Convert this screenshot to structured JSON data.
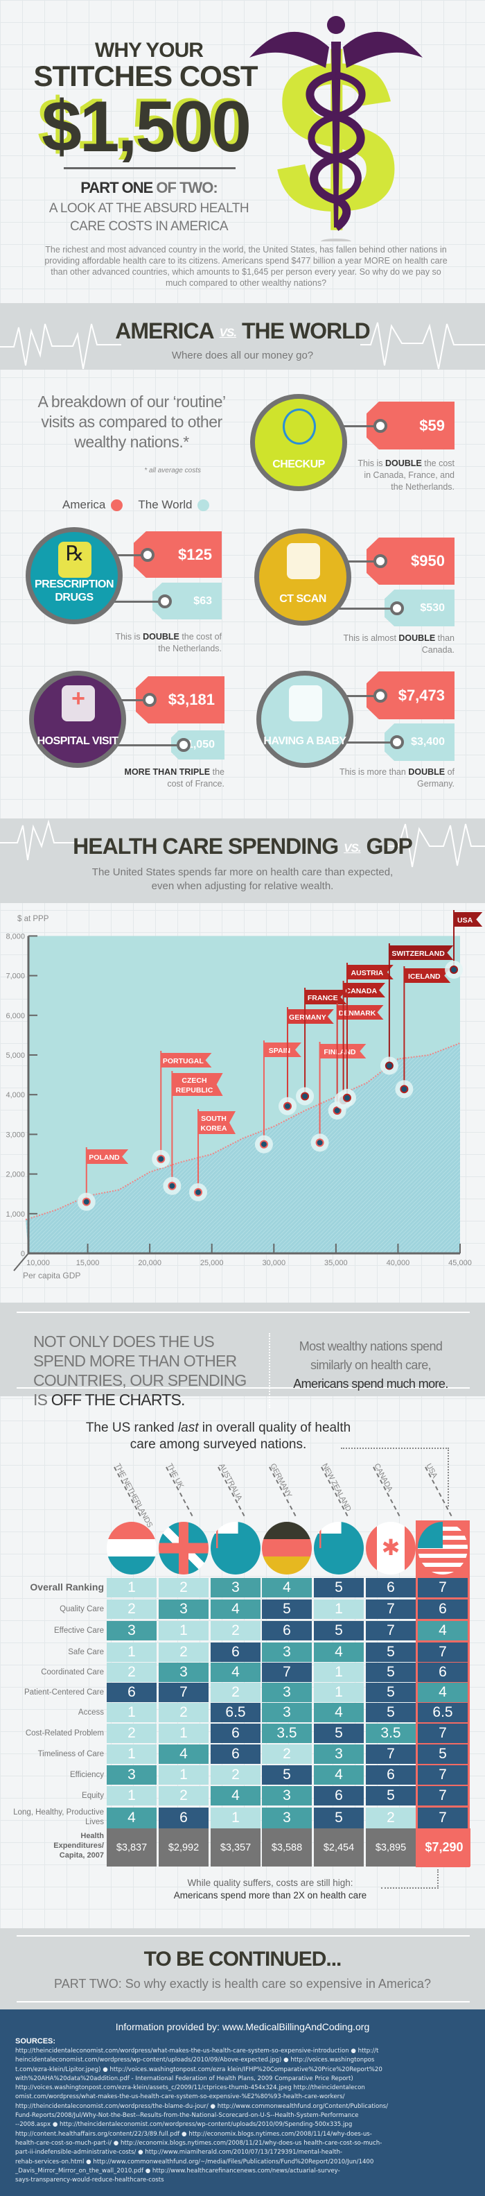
{
  "header": {
    "title_line1": "WHY YOUR",
    "title_line2": "STITCHES COST",
    "title_amount": "$1,500",
    "part_bold": "PART ONE",
    "part_rest": " OF TWO:",
    "subtitle": "A LOOK AT THE ABSURD HEALTH CARE COSTS IN AMERICA",
    "intro": "The richest and most advanced country in the world, the United States, has fallen behind other nations in providing affordable health care to its citizens. Americans spend $477 billion a year MORE on health care than other advanced countries, which amounts to $1,645 per person every year. So why do we pay so much compared to other wealthy nations?",
    "logo_icon": "caduceus-dollar-icon",
    "colors": {
      "purple": "#4e1b57",
      "lime": "#d3e63a"
    }
  },
  "section1": {
    "title_a": "AMERICA",
    "vs": "VS.",
    "title_b": "THE WORLD",
    "subtitle": "Where does all our money go?",
    "breakdown": "A breakdown of our ‘routine’ visits as compared to other wealthy nations.*",
    "footnote": "* all average costs",
    "legend": [
      {
        "label": "America",
        "color": "#f36b64"
      },
      {
        "label": "The World",
        "color": "#b7e2e2"
      }
    ],
    "visits": [
      {
        "label": "CHECKUP",
        "icon": "stethoscope-icon",
        "color": "#cfe32c",
        "america": "$59",
        "world": null,
        "caption_pre": "This is ",
        "caption_bold": "DOUBLE",
        "caption_post": " the cost in Canada, France, and the Netherlands."
      },
      {
        "label": "PRESCRIPTION DRUGS",
        "icon": "pill-bottle-icon",
        "color": "#139eae",
        "america": "$125",
        "world": "$63",
        "caption_pre": "This is ",
        "caption_bold": "DOUBLE",
        "caption_post": " the cost of the Netherlands."
      },
      {
        "label": "CT SCAN",
        "icon": "ct-scanner-icon",
        "color": "#e5b71f",
        "america": "$950",
        "world": "$530",
        "caption_pre": "This is almost ",
        "caption_bold": "DOUBLE",
        "caption_post": " than Canada."
      },
      {
        "label": "HOSPITAL VISIT",
        "icon": "nurse-cap-icon",
        "color": "#5c2a67",
        "america": "$3,181",
        "world": "$1,050",
        "caption_pre": "",
        "caption_bold": "MORE THAN TRIPLE",
        "caption_post": " the cost of France."
      },
      {
        "label": "HAVING A BABY",
        "icon": "stork-icon",
        "color": "#b7e2e2",
        "america": "$7,473",
        "world": "$3,400",
        "caption_pre": "This is more than ",
        "caption_bold": "DOUBLE",
        "caption_post": " of Germany."
      }
    ]
  },
  "section2": {
    "title_a": "HEALTH CARE SPENDING",
    "vs": "VS.",
    "title_b": "GDP",
    "subtitle": "The United States spends far more on health care than expected, even when adjusting for relative wealth."
  },
  "chart_data": {
    "type": "scatter",
    "ylabel": "$ at PPP",
    "xlabel": "Per capita GDP",
    "xlim": [
      10000,
      45000
    ],
    "ylim": [
      0,
      8000
    ],
    "xticks": [
      "10,000",
      "15,000",
      "20,000",
      "25,000",
      "30,000",
      "35,000",
      "40,000",
      "45,000"
    ],
    "xtick_values": [
      10000,
      15000,
      20000,
      25000,
      30000,
      35000,
      40000,
      45000
    ],
    "yticks": [
      "0",
      "1,000",
      "2,000",
      "3,000",
      "4,000",
      "5,000",
      "6,000",
      "7,000",
      "8,000"
    ],
    "ytick_values": [
      0,
      1000,
      2000,
      3000,
      4000,
      5000,
      6000,
      7000,
      8000
    ],
    "grid": false,
    "points": [
      {
        "label": "POLAND",
        "x": 14900,
        "y": 1300
      },
      {
        "label": "PORTUGAL",
        "x": 20900,
        "y": 2380
      },
      {
        "label": "CZECH REPUBLIC",
        "x": 21800,
        "y": 1700
      },
      {
        "label": "SOUTH KOREA",
        "x": 23900,
        "y": 1540
      },
      {
        "label": "SPAIN",
        "x": 29200,
        "y": 2750
      },
      {
        "label": "GERMANY",
        "x": 31100,
        "y": 3710
      },
      {
        "label": "FRANCE",
        "x": 32500,
        "y": 3960
      },
      {
        "label": "FINLAND",
        "x": 33700,
        "y": 2790
      },
      {
        "label": "DENMARK",
        "x": 35100,
        "y": 3600
      },
      {
        "label": "CANADA",
        "x": 35600,
        "y": 3860
      },
      {
        "label": "AUSTRIA",
        "x": 35900,
        "y": 3920
      },
      {
        "label": "SWITZERLAND",
        "x": 39300,
        "y": 4730
      },
      {
        "label": "ICELAND",
        "x": 40500,
        "y": 4140
      },
      {
        "label": "USA",
        "x": 44500,
        "y": 7150
      }
    ],
    "trend": [
      [
        10000,
        850
      ],
      [
        12500,
        1100
      ],
      [
        15000,
        1450
      ],
      [
        17500,
        1600
      ],
      [
        20000,
        2050
      ],
      [
        22500,
        2300
      ],
      [
        25000,
        2500
      ],
      [
        27500,
        2900
      ],
      [
        30000,
        3200
      ],
      [
        32500,
        3600
      ],
      [
        35000,
        3950
      ],
      [
        37500,
        4300
      ],
      [
        40000,
        4900
      ],
      [
        42500,
        5000
      ],
      [
        45000,
        5300
      ]
    ],
    "colors": {
      "area": "#b3e0e0",
      "below": "#9fd3dc",
      "point": "#1d4f6e",
      "trend": "#f08585"
    }
  },
  "callout": {
    "left_pre": "NOT ONLY DOES THE US SPEND MORE THAN OTHER COUNTRIES, OUR SPENDING IS ",
    "left_bold": "OFF THE CHARTS.",
    "right_pre": "Most wealthy nations spend similarly on health care,",
    "right_bold": "Americans spend much more."
  },
  "ranking": {
    "heading_pre": "The US ranked ",
    "heading_em": "last",
    "heading_post": " in overall quality of health care among surveyed nations.",
    "countries": [
      {
        "name": "THE NETHERLANDS",
        "flag": "netherlands-flag-icon"
      },
      {
        "name": "THE UK",
        "flag": "uk-flag-icon"
      },
      {
        "name": "AUSTRALIA",
        "flag": "australia-flag-icon"
      },
      {
        "name": "GERMANY",
        "flag": "germany-flag-icon"
      },
      {
        "name": "NEW ZEALAND",
        "flag": "new-zealand-flag-icon"
      },
      {
        "name": "CANADA",
        "flag": "canada-flag-icon"
      },
      {
        "name": "USA",
        "flag": "usa-flag-icon"
      }
    ],
    "rows": [
      {
        "label": "Overall Ranking",
        "values": [
          "1",
          "2",
          "3",
          "4",
          "5",
          "6",
          "7"
        ]
      },
      {
        "label": "Quality Care",
        "values": [
          "2",
          "3",
          "4",
          "5",
          "1",
          "7",
          "6"
        ]
      },
      {
        "label": "Effective Care",
        "values": [
          "3",
          "1",
          "2",
          "6",
          "5",
          "7",
          "4"
        ]
      },
      {
        "label": "Safe Care",
        "values": [
          "1",
          "2",
          "6",
          "3",
          "4",
          "5",
          "7"
        ]
      },
      {
        "label": "Coordinated Care",
        "values": [
          "2",
          "3",
          "4",
          "7",
          "1",
          "5",
          "6"
        ]
      },
      {
        "label": "Patient-Centered Care",
        "values": [
          "6",
          "7",
          "2",
          "3",
          "1",
          "5",
          "4"
        ]
      },
      {
        "label": "Access",
        "values": [
          "1",
          "2",
          "6.5",
          "3",
          "4",
          "5",
          "6.5"
        ]
      },
      {
        "label": "Cost-Related Problem",
        "values": [
          "2",
          "1",
          "6",
          "3.5",
          "5",
          "3.5",
          "7"
        ]
      },
      {
        "label": "Timeliness of Care",
        "values": [
          "1",
          "4",
          "6",
          "2",
          "3",
          "7",
          "5"
        ]
      },
      {
        "label": "Efficiency",
        "values": [
          "3",
          "1",
          "2",
          "5",
          "4",
          "6",
          "7"
        ]
      },
      {
        "label": "Equity",
        "values": [
          "1",
          "2",
          "4",
          "3",
          "6",
          "5",
          "7"
        ]
      },
      {
        "label": "Long, Healthy, Productive Lives",
        "values": [
          "4",
          "6",
          "1",
          "3",
          "5",
          "2",
          "7"
        ]
      }
    ],
    "expenditures": {
      "label": "Health Expenditures/ Capita, 2007",
      "values": [
        "$3,837",
        "$2,992",
        "$3,357",
        "$3,588",
        "$2,454",
        "$3,895",
        "$7,290"
      ]
    },
    "colors": {
      "low": "#b5e1e2",
      "mid": "#47a0a4",
      "high": "#2f5a7f",
      "usa": "#f36b64",
      "exp": "#757575"
    },
    "note_line1": "While quality suffers, costs are still high:",
    "note_line2": "Americans spend more than 2X on health care"
  },
  "continued": {
    "title": "TO BE CONTINUED...",
    "subtitle": "PART TWO: So why exactly is health care so expensive in America?"
  },
  "footer": {
    "info": "Information provided by: www.MedicalBillingAndCoding.org",
    "sources_label": "SOURCES:",
    "sources_lines": [
      "http://theincidentaleconomist.com/wordpress/what-makes-the-us-health-care-system-so-expensive-introduction ● http://t",
      "heincidentaleconomist.com/wordpress/wp-content/uploads/2010/09/Above-expected.jpg) ● http://voices.washingtonpos",
      "t.com/ezra-klein/Lipitor.jpeg) ● http://voices.washingtonpost.com/ezra klein/IFHP%20Comparative%20Price%20Report%20",
      "with%20AHA%20data%20addition.pdf - International Federation of Health Plans, 2009 Comparative Price Report)",
      "http://voices.washingtonpost.com/ezra-klein/assets_c/2009/11/ctprices-thumb-454x324.jpeg http://theincidentalecon",
      "omist.com/wordpress/what-makes-the-us-health-care-system-so-expensive-%E2%80%93-health-care-workers/",
      "http://theincidentaleconomist.com/wordpress/the-blame-du-jour/ ● http://www.commonwealthfund.org/Content/Publications/",
      "Fund-Reports/2008/Jul/Why-Not-the-Best--Results-from-the-National-Scorecard-on-U-S--Health-System-Performance",
      "--2008.aspx ● http://theincidentaleconomist.com/wordpress/wp-content/uploads/2010/09/Spending-500x335.jpg",
      "http://content.healthaffairs.org/content/22/3/89.full.pdf ● http://economix.blogs.nytimes.com/2008/11/14/why-does-us-",
      "health-care-cost-so-much-part-i/ ● http://economix.blogs.nytimes.com/2008/11/21/why-does-us health-care-cost-so-much-",
      "part-ii-indefensible-administrative-costs/ ● http://www.miamiherald.com/2010/07/13/1729391/mental-health-",
      "rehab-services-on.html ● http://www.commonwealthfund.org/~/media/Files/Publications/Fund%20Report/2010/Jun/1400",
      "_Davis_Mirror_Mirror_on_the_wall_2010.pdf ● http://www.healthcarefinancenews.com/news/actuarial-survey-",
      "says-transparency-would-reduce-healthcare-costs"
    ]
  }
}
